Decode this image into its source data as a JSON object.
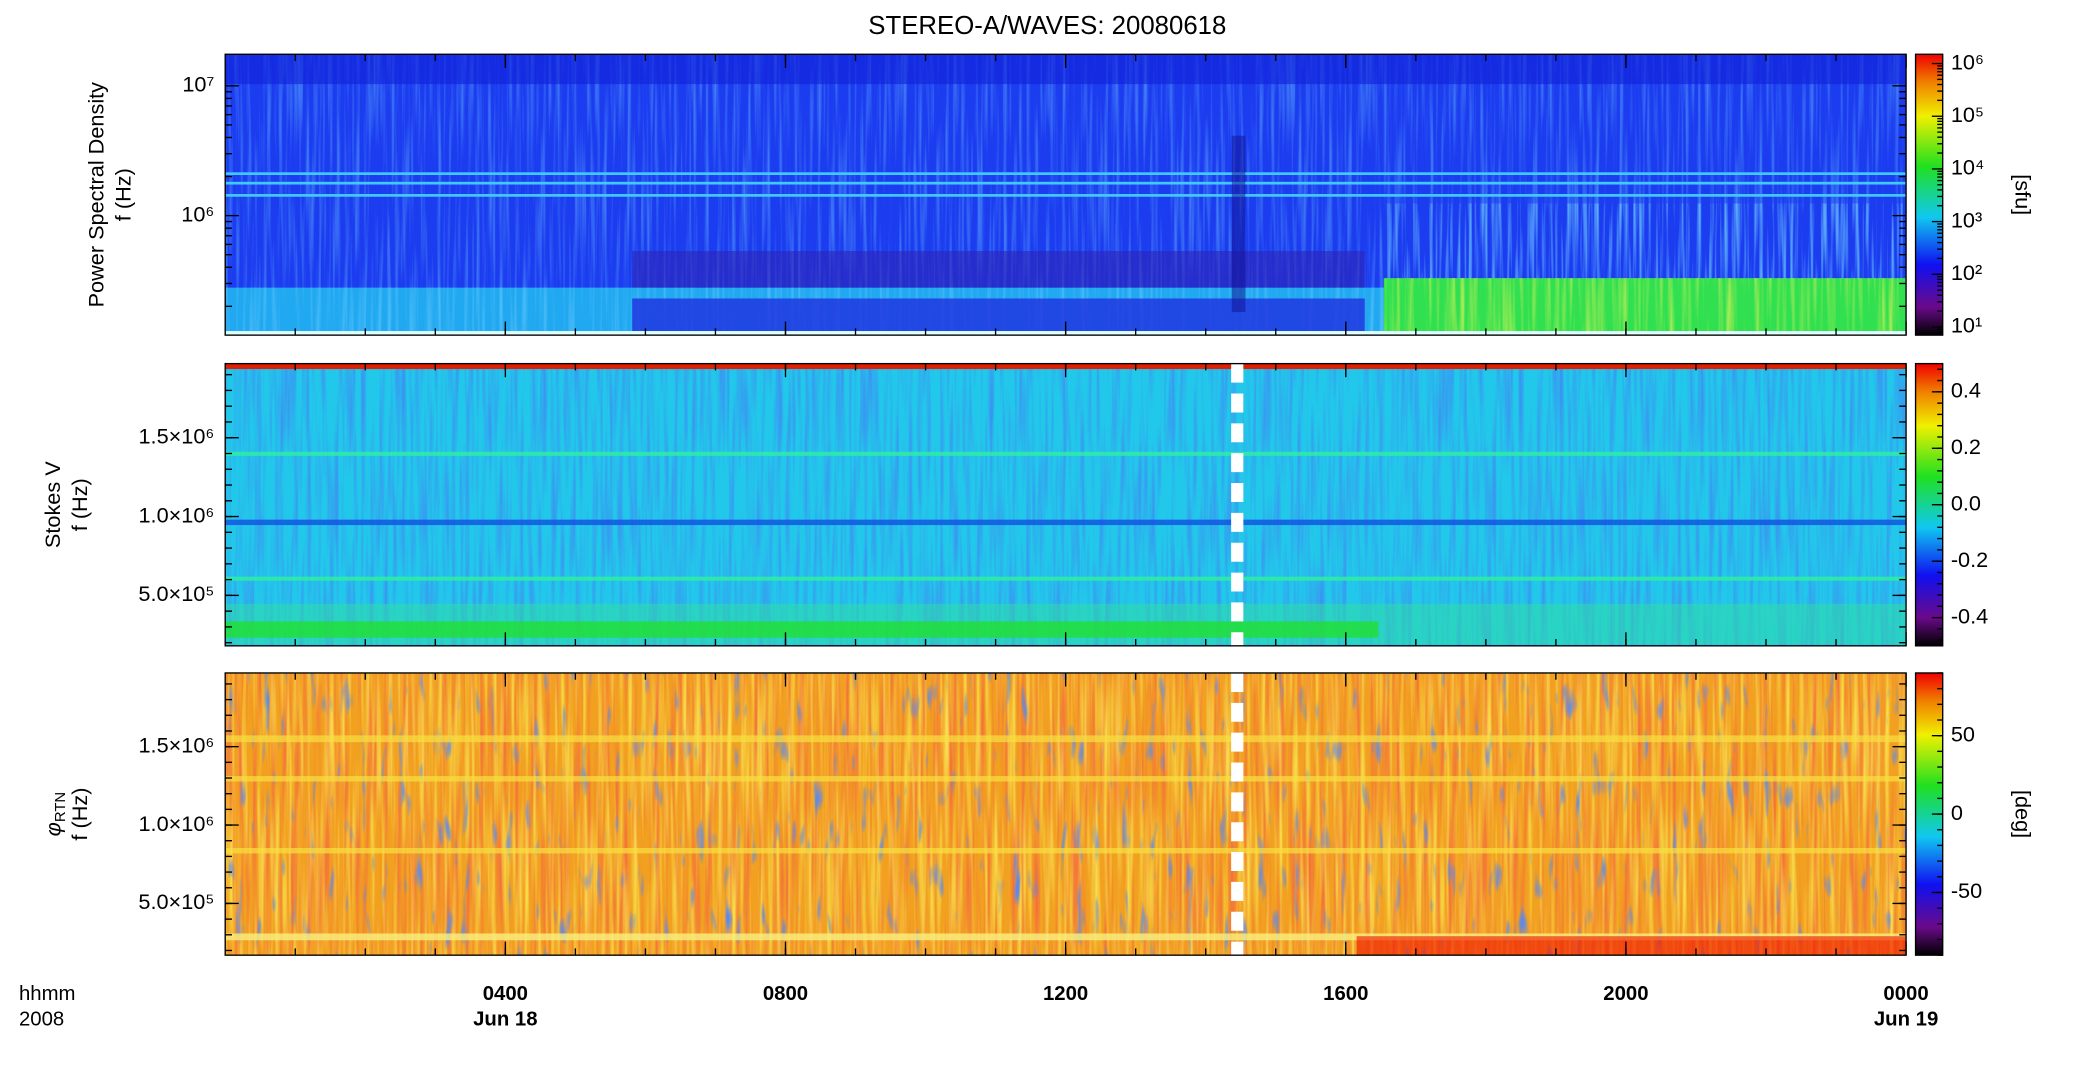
{
  "title": "STEREO-A/WAVES: 20080618",
  "x_axis": {
    "time_format_label": "hhmm",
    "year_label": "2008",
    "date_labels": [
      {
        "value": 4,
        "label": "Jun 18"
      },
      {
        "value": 24,
        "label": "Jun 19"
      }
    ]
  },
  "chart_data": [
    {
      "type": "spectrogram",
      "ylabel": "Power Spectral Density",
      "ylabel2": "f (Hz)",
      "yscale": "log",
      "ylim": [
        120000,
        17500000
      ],
      "yticks": [
        {
          "value": 1000000,
          "label": "10⁶"
        },
        {
          "value": 10000000,
          "label": "10⁷"
        }
      ],
      "xlim": [
        0,
        24
      ],
      "xticks": [
        {
          "value": 4,
          "label": "0400"
        },
        {
          "value": 8,
          "label": "0800"
        },
        {
          "value": 12,
          "label": "1200"
        },
        {
          "value": 16,
          "label": "1600"
        },
        {
          "value": 20,
          "label": "2000"
        },
        {
          "value": 24,
          "label": "0000"
        }
      ],
      "zscale": "log",
      "zlim": [
        7,
        1500000
      ],
      "zlabel": "[sfu]",
      "zticks": [
        {
          "value": 10,
          "label": "10¹"
        },
        {
          "value": 100,
          "label": "10²"
        },
        {
          "value": 1000,
          "label": "10³"
        },
        {
          "value": 10000,
          "label": "10⁴"
        },
        {
          "value": 100000,
          "label": "10⁵"
        },
        {
          "value": 1000000,
          "label": "10⁶"
        }
      ]
    },
    {
      "type": "spectrogram",
      "ylabel": "Stokes V",
      "ylabel2": "f (Hz)",
      "yscale": "linear",
      "ylim": [
        180000,
        1970000
      ],
      "yticks": [
        {
          "value": 500000,
          "label": "5.0×10⁵"
        },
        {
          "value": 1000000,
          "label": "1.0×10⁶"
        },
        {
          "value": 1500000,
          "label": "1.5×10⁶"
        }
      ],
      "xlim": [
        0,
        24
      ],
      "xticks": [
        {
          "value": 4,
          "label": "0400"
        },
        {
          "value": 8,
          "label": "0800"
        },
        {
          "value": 12,
          "label": "1200"
        },
        {
          "value": 16,
          "label": "1600"
        },
        {
          "value": 20,
          "label": "2000"
        },
        {
          "value": 24,
          "label": "0000"
        }
      ],
      "zscale": "linear",
      "zlim": [
        -0.5,
        0.5
      ],
      "zticks": [
        {
          "value": -0.4,
          "label": "-0.4"
        },
        {
          "value": -0.2,
          "label": "-0.2"
        },
        {
          "value": 0,
          "label": "0.0"
        },
        {
          "value": 0.2,
          "label": "0.2"
        },
        {
          "value": 0.4,
          "label": "0.4"
        }
      ]
    },
    {
      "type": "spectrogram",
      "ylabel": "φ",
      "ylabel_sub": "RTN",
      "ylabel2": "f (Hz)",
      "yscale": "linear",
      "ylim": [
        170000,
        1970000
      ],
      "yticks": [
        {
          "value": 500000,
          "label": "5.0×10⁵"
        },
        {
          "value": 1000000,
          "label": "1.0×10⁶"
        },
        {
          "value": 1500000,
          "label": "1.5×10⁶"
        }
      ],
      "xlim": [
        0,
        24
      ],
      "xticks": [
        {
          "value": 4,
          "label": "0400"
        },
        {
          "value": 8,
          "label": "0800"
        },
        {
          "value": 12,
          "label": "1200"
        },
        {
          "value": 16,
          "label": "1600"
        },
        {
          "value": 20,
          "label": "2000"
        },
        {
          "value": 24,
          "label": "0000"
        }
      ],
      "zscale": "linear",
      "zlim": [
        -90,
        90
      ],
      "zlabel": "[deg]",
      "zticks": [
        -50,
        0,
        50
      ]
    }
  ]
}
